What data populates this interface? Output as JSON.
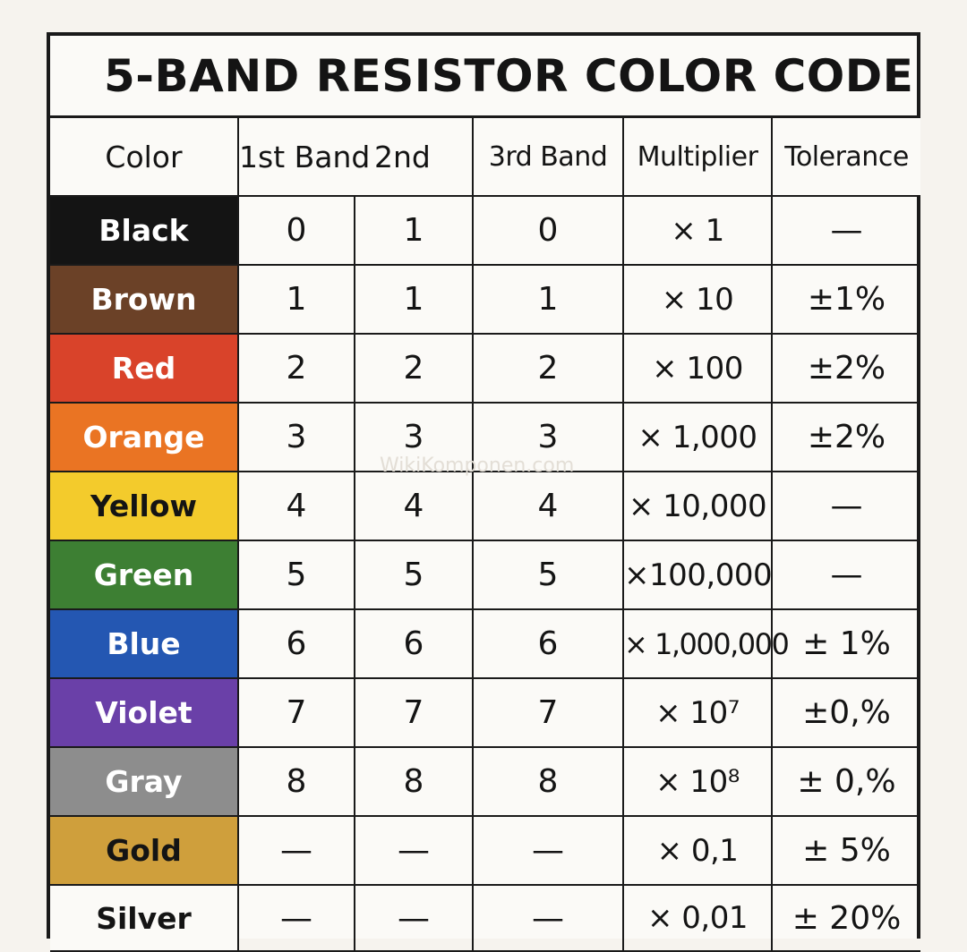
{
  "title": "5-BAND RESISTOR COLOR CODE",
  "watermark": "WikiKomponen.com",
  "headers": {
    "color": "Color",
    "band1": "1st Band",
    "band2": "2nd",
    "band3": "3rd Band",
    "multiplier": "Multiplier",
    "tolerance": "Tolerance"
  },
  "rows": [
    {
      "color": "Black",
      "bg": "#141414",
      "fg": "#ffffff",
      "b1": "0",
      "b2": "1",
      "b3": "0",
      "mult": "× 1",
      "tol": "—"
    },
    {
      "color": "Brown",
      "bg": "#6b4127",
      "fg": "#ffffff",
      "b1": "1",
      "b2": "1",
      "b3": "1",
      "mult": "× 10",
      "tol": "±1%"
    },
    {
      "color": "Red",
      "bg": "#d9432a",
      "fg": "#ffffff",
      "b1": "2",
      "b2": "2",
      "b3": "2",
      "mult": "× 100",
      "tol": "±2%"
    },
    {
      "color": "Orange",
      "bg": "#ea7423",
      "fg": "#ffffff",
      "b1": "3",
      "b2": "3",
      "b3": "3",
      "mult": "× 1,000",
      "tol": "±2%"
    },
    {
      "color": "Yellow",
      "bg": "#f3cb2c",
      "fg": "#141414",
      "b1": "4",
      "b2": "4",
      "b3": "4",
      "mult": "× 10,000",
      "tol": "—"
    },
    {
      "color": "Green",
      "bg": "#3d7f33",
      "fg": "#ffffff",
      "b1": "5",
      "b2": "5",
      "b3": "5",
      "mult": "×100,000",
      "tol": "—"
    },
    {
      "color": "Blue",
      "bg": "#2457b2",
      "fg": "#ffffff",
      "b1": "6",
      "b2": "6",
      "b3": "6",
      "mult": "× 1,000,000",
      "tol": "± 1%"
    },
    {
      "color": "Violet",
      "bg": "#6a40a8",
      "fg": "#ffffff",
      "b1": "7",
      "b2": "7",
      "b3": "7",
      "mult": "× 10⁷",
      "tol": "±0,%"
    },
    {
      "color": "Gray",
      "bg": "#8d8d8d",
      "fg": "#ffffff",
      "b1": "8",
      "b2": "8",
      "b3": "8",
      "mult": "× 10⁸",
      "tol": "± 0,%"
    },
    {
      "color": "Gold",
      "bg": "#cf9f3c",
      "fg": "#141414",
      "b1": "—",
      "b2": "—",
      "b3": "—",
      "mult": "× 0,1",
      "tol": "± 5%"
    },
    {
      "color": "Silver",
      "bg": "#fbfaf7",
      "fg": "#141414",
      "b1": "—",
      "b2": "—",
      "b3": "—",
      "mult": "× 0,01",
      "tol": "± 20%"
    }
  ]
}
